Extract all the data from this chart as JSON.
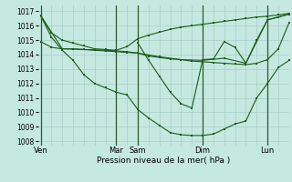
{
  "bg_color": "#c5e8e0",
  "grid_color": "#a8d0c8",
  "line_color": "#1a5c1a",
  "sep_color": "#2d5a2d",
  "xlabel": "Pression niveau de la mer( hPa )",
  "ylim": [
    1007.7,
    1017.4
  ],
  "yticks": [
    1008,
    1009,
    1010,
    1011,
    1012,
    1013,
    1014,
    1015,
    1016,
    1017
  ],
  "day_labels": [
    "Ven",
    "Mar",
    "Sam",
    "Dim",
    "Lun"
  ],
  "day_positions": [
    0,
    14,
    18,
    30,
    42
  ],
  "xlim": [
    -0.5,
    46.0
  ],
  "lines": [
    {
      "x": [
        0,
        2,
        4,
        6,
        8,
        10,
        12,
        14,
        16,
        18,
        20,
        22,
        24,
        26,
        28,
        30,
        32,
        34,
        36,
        38,
        40,
        42,
        44,
        46
      ],
      "y": [
        1016.7,
        1015.5,
        1015.0,
        1014.8,
        1014.6,
        1014.4,
        1014.35,
        1014.3,
        1014.55,
        1015.1,
        1015.35,
        1015.55,
        1015.75,
        1015.9,
        1016.0,
        1016.1,
        1016.2,
        1016.3,
        1016.4,
        1016.5,
        1016.6,
        1016.65,
        1016.75,
        1016.85
      ]
    },
    {
      "x": [
        0,
        2,
        4,
        6,
        8,
        10,
        12,
        14,
        16,
        18,
        20,
        22,
        24,
        26,
        28,
        30,
        32,
        34,
        36,
        38,
        40,
        42,
        44,
        46
      ],
      "y": [
        1014.9,
        1014.5,
        1014.4,
        1014.4,
        1014.35,
        1014.3,
        1014.25,
        1014.2,
        1014.15,
        1014.1,
        1013.9,
        1013.8,
        1013.7,
        1013.65,
        1013.55,
        1013.5,
        1013.45,
        1013.4,
        1013.35,
        1013.3,
        1013.4,
        1013.65,
        1014.4,
        1016.2
      ]
    },
    {
      "x": [
        0,
        2,
        4,
        6,
        8,
        10,
        12,
        14,
        16,
        18,
        20,
        22,
        24,
        26,
        28,
        30,
        32,
        34,
        36,
        38,
        40,
        42,
        44,
        46
      ],
      "y": [
        1016.7,
        1015.2,
        1014.3,
        1013.6,
        1012.6,
        1012.0,
        1011.7,
        1011.4,
        1011.2,
        1010.2,
        1009.6,
        1009.1,
        1008.6,
        1008.45,
        1008.4,
        1008.4,
        1008.5,
        1008.85,
        1009.2,
        1009.4,
        1011.0,
        1012.0,
        1013.1,
        1013.6
      ]
    },
    {
      "x": [
        0,
        4,
        8,
        12,
        16,
        18,
        22,
        26,
        30,
        34,
        38,
        42,
        44,
        46
      ],
      "y": [
        1016.7,
        1014.4,
        1014.35,
        1014.3,
        1014.2,
        1014.1,
        1013.85,
        1013.65,
        1013.6,
        1013.75,
        1013.4,
        1016.4,
        1016.6,
        1016.8
      ]
    },
    {
      "x": [
        18,
        20,
        22,
        24,
        26,
        28,
        30,
        32,
        34,
        36,
        38,
        40,
        42,
        44,
        46
      ],
      "y": [
        1014.8,
        1013.6,
        1012.5,
        1011.4,
        1010.6,
        1010.3,
        1013.65,
        1013.7,
        1014.9,
        1014.5,
        1013.4,
        1015.0,
        1016.4,
        1016.6,
        1016.8
      ]
    }
  ]
}
